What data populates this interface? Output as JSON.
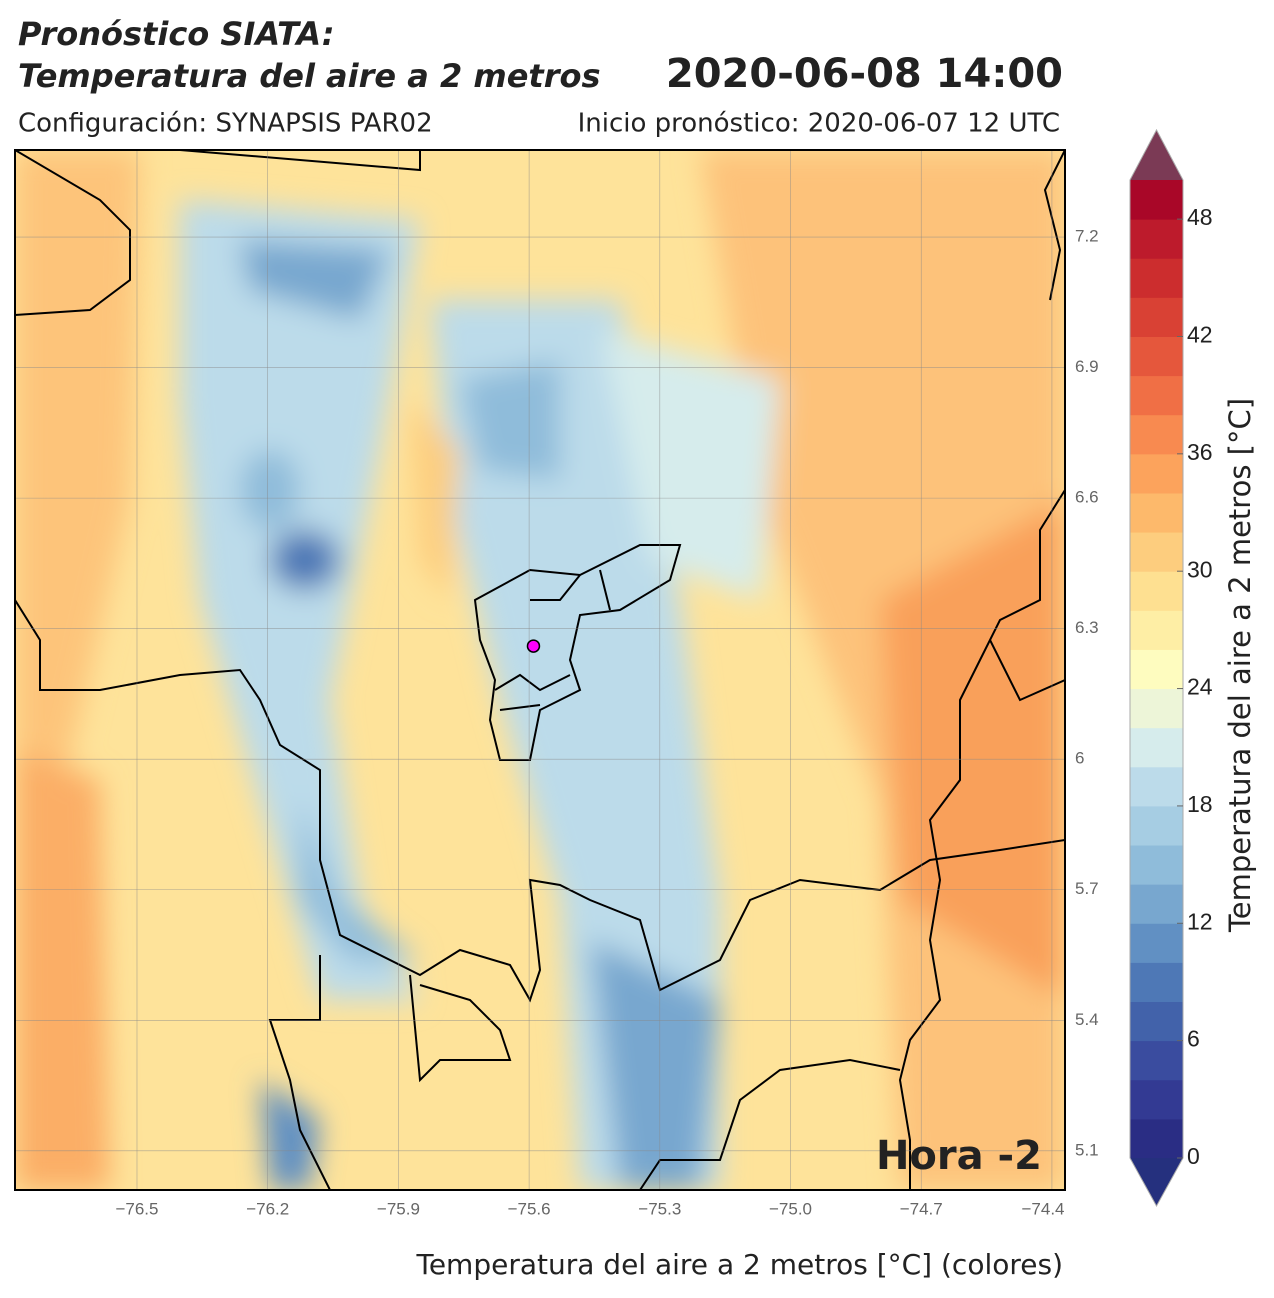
{
  "chart_data": {
    "type": "map",
    "title": "Pronóstico SIATA:",
    "subtitle": "Temperatura del aire a 2 metros",
    "date": "2020-06-08 14:00",
    "config": "Configuración: SYNAPSIS PAR02",
    "init": "Inicio pronóstico: 2020-06-07 12 UTC",
    "xlabel": "Temperatura del aire a 2 metros [°C] (colores)",
    "annotation": "Hora -2",
    "xlim": [
      -76.78,
      -74.37
    ],
    "ylim": [
      5.01,
      7.4
    ],
    "xticks": [
      {
        "value": -76.5,
        "label": "−76.5"
      },
      {
        "value": -76.2,
        "label": "−76.2"
      },
      {
        "value": -75.9,
        "label": "−75.9"
      },
      {
        "value": -75.6,
        "label": "−75.6"
      },
      {
        "value": -75.3,
        "label": "−75.3"
      },
      {
        "value": -75.0,
        "label": "−75.0"
      },
      {
        "value": -74.7,
        "label": "−74.7"
      },
      {
        "value": -74.4,
        "label": "−74.4"
      }
    ],
    "yticks": [
      5.1,
      5.4,
      5.7,
      6.0,
      6.3,
      6.6,
      6.9,
      7.2
    ],
    "grid": true,
    "marker": {
      "lon": -75.59,
      "lat": 6.26,
      "color": "#ff00ff"
    },
    "colorbar": {
      "label": "Temperatura del aire a 2 metros [°C]",
      "lim": [
        0,
        50
      ],
      "ticks": [
        0,
        6,
        12,
        18,
        24,
        30,
        36,
        42,
        48
      ],
      "colors": [
        "#2a2d84",
        "#333a93",
        "#3a4c9f",
        "#4262aa",
        "#4e78b6",
        "#6190c3",
        "#78a7cf",
        "#8fbcda",
        "#a6cde3",
        "#bcdbea",
        "#d6ecec",
        "#edf5d8",
        "#fefcbf",
        "#feeea5",
        "#fee091",
        "#fdcd7e",
        "#fdb96b",
        "#fca35c",
        "#f88a50",
        "#f06f45",
        "#e5573c",
        "#d94134",
        "#cc2d2e",
        "#bd1b2c",
        "#a90728"
      ],
      "under_color": "#25307e",
      "over_color": "#7b3a55"
    }
  }
}
